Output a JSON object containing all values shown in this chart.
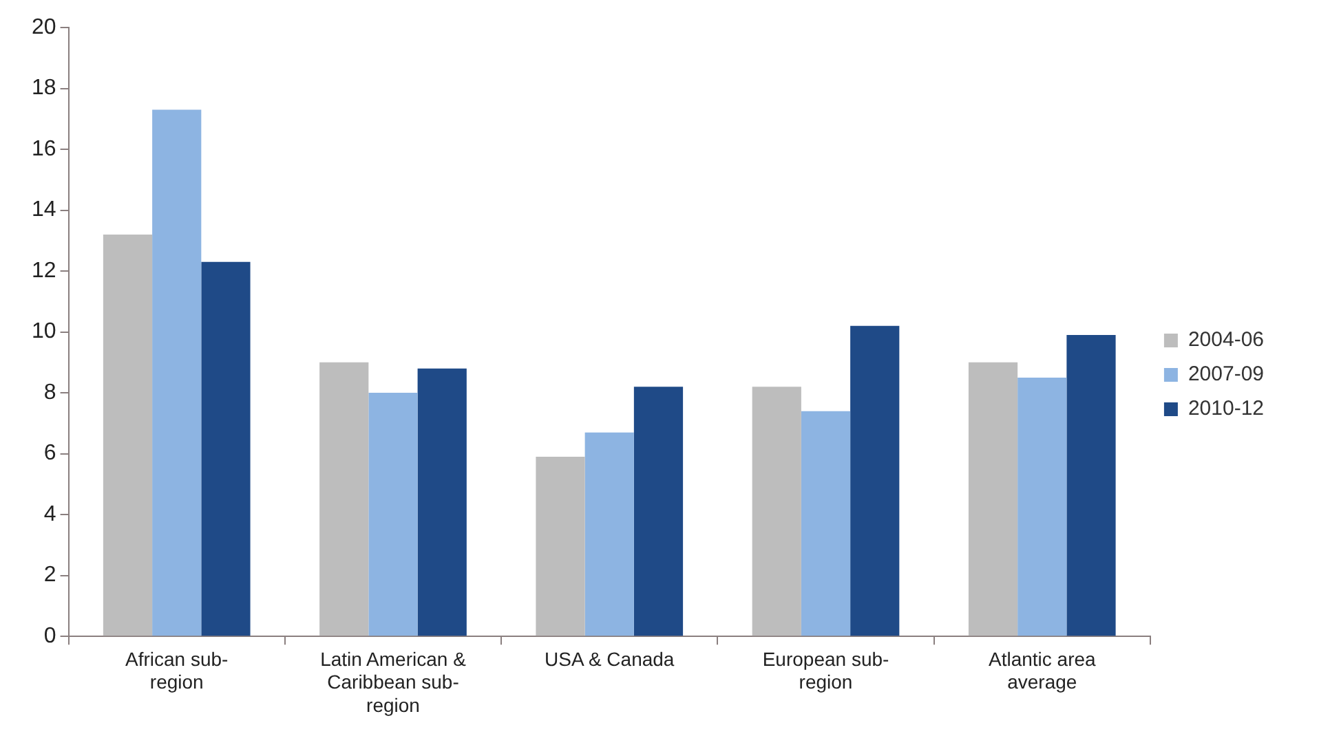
{
  "chart_data": {
    "type": "bar",
    "categories": [
      "African sub-region",
      "Latin American & Caribbean sub-region",
      "USA & Canada",
      "European sub-region",
      "Atlantic area average"
    ],
    "series": [
      {
        "name": "2004-06",
        "color": "#bdbdbd",
        "values": [
          13.2,
          9.0,
          5.9,
          8.2,
          9.0
        ]
      },
      {
        "name": "2007-09",
        "color": "#8db4e2",
        "values": [
          17.3,
          8.0,
          6.7,
          7.4,
          8.5
        ]
      },
      {
        "name": "2010-12",
        "color": "#1f4a87",
        "values": [
          12.3,
          8.8,
          8.2,
          10.2,
          9.9
        ]
      }
    ],
    "ylim": [
      0,
      20
    ],
    "yticks": [
      0,
      2,
      4,
      6,
      8,
      10,
      12,
      14,
      16,
      18,
      20
    ],
    "grid": false,
    "legend": "right"
  }
}
